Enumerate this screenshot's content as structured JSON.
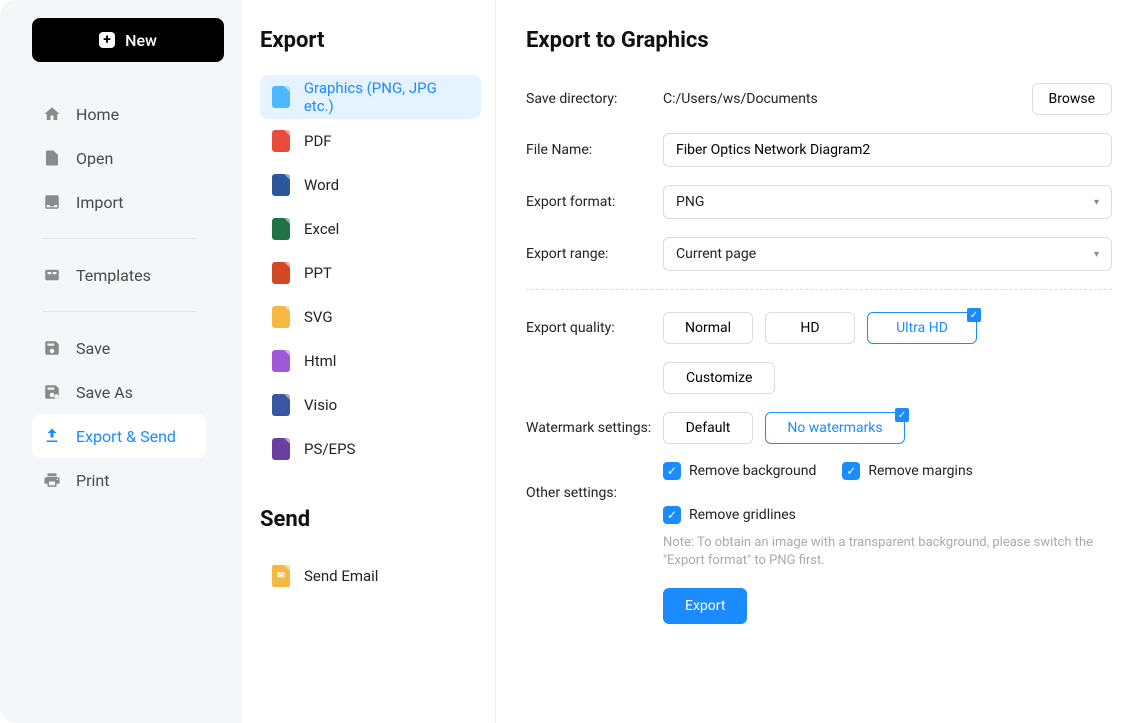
{
  "sidebar": {
    "new_label": "New",
    "items": [
      {
        "id": "home",
        "label": "Home",
        "icon": "home"
      },
      {
        "id": "open",
        "label": "Open",
        "icon": "file"
      },
      {
        "id": "import",
        "label": "Import",
        "icon": "inbox"
      },
      {
        "id": "templates",
        "label": "Templates",
        "icon": "grid",
        "sep_before": true
      },
      {
        "id": "save",
        "label": "Save",
        "icon": "save",
        "sep_before": true
      },
      {
        "id": "saveas",
        "label": "Save As",
        "icon": "saveas"
      },
      {
        "id": "export",
        "label": "Export & Send",
        "icon": "upload",
        "active": true
      },
      {
        "id": "print",
        "label": "Print",
        "icon": "print"
      }
    ]
  },
  "export_section": {
    "title": "Export",
    "formats": [
      {
        "id": "graphics",
        "label": "Graphics (PNG, JPG etc.)",
        "color": "#4db8ff",
        "active": true
      },
      {
        "id": "pdf",
        "label": "PDF",
        "color": "#e74c3c"
      },
      {
        "id": "word",
        "label": "Word",
        "color": "#2b579a"
      },
      {
        "id": "excel",
        "label": "Excel",
        "color": "#217346"
      },
      {
        "id": "ppt",
        "label": "PPT",
        "color": "#d24726"
      },
      {
        "id": "svg",
        "label": "SVG",
        "color": "#f5b942"
      },
      {
        "id": "html",
        "label": "Html",
        "color": "#a259d9"
      },
      {
        "id": "visio",
        "label": "Visio",
        "color": "#3955a3"
      },
      {
        "id": "pseps",
        "label": "PS/EPS",
        "color": "#6b3fa0"
      }
    ]
  },
  "send_section": {
    "title": "Send",
    "items": [
      {
        "id": "email",
        "label": "Send Email",
        "color": "#f5b942"
      }
    ]
  },
  "panel": {
    "title": "Export to Graphics",
    "save_dir_label": "Save directory:",
    "save_dir_value": "C:/Users/ws/Documents",
    "browse_label": "Browse",
    "file_name_label": "File Name:",
    "file_name_value": "Fiber Optics Network Diagram2",
    "export_format_label": "Export format:",
    "export_format_value": "PNG",
    "export_range_label": "Export range:",
    "export_range_value": "Current page",
    "export_quality_label": "Export quality:",
    "quality_options": [
      "Normal",
      "HD",
      "Ultra HD"
    ],
    "quality_selected": "Ultra HD",
    "customize_label": "Customize",
    "watermark_label": "Watermark settings:",
    "watermark_options": [
      "Default",
      "No watermarks"
    ],
    "watermark_selected": "No watermarks",
    "other_label": "Other settings:",
    "checks": [
      {
        "id": "rmbg",
        "label": "Remove background",
        "checked": true
      },
      {
        "id": "rmmg",
        "label": "Remove margins",
        "checked": true
      },
      {
        "id": "rmgl",
        "label": "Remove gridlines",
        "checked": true
      }
    ],
    "note": "Note: To obtain an image with a transparent background, please switch the \"Export format\" to PNG first.",
    "export_btn": "Export"
  },
  "colors": {
    "accent": "#1a8cff"
  }
}
